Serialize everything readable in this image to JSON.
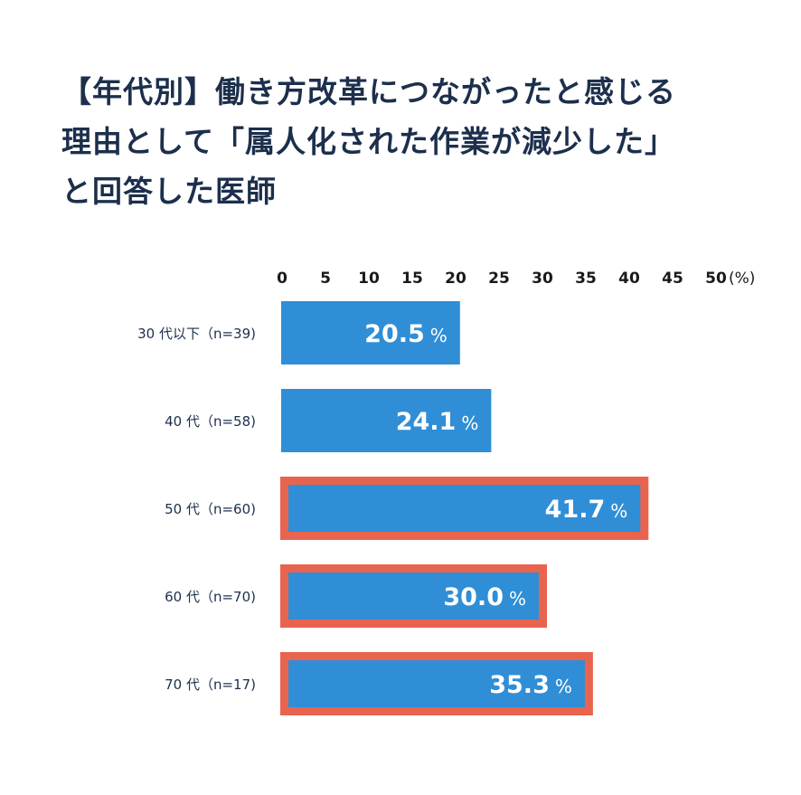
{
  "chart_data": {
    "type": "bar",
    "orientation": "horizontal",
    "title_lines": [
      "【年代別】働き方改革につながったと感じる",
      "理由として「属人化された作業が減少した」",
      "と回答した医師"
    ],
    "categories": [
      "30 代以下（n=39)",
      "40 代（n=58)",
      "50 代（n=60)",
      "60 代（n=70)",
      "70 代（n=17)"
    ],
    "values": [
      20.5,
      24.1,
      41.7,
      30.0,
      35.3
    ],
    "value_labels": [
      "20.5",
      "24.1",
      "41.7",
      "30.0",
      "35.3"
    ],
    "value_unit": "%",
    "highlighted": [
      false,
      false,
      true,
      true,
      true
    ],
    "xlim": [
      0,
      50
    ],
    "xticks": [
      "0",
      "5",
      "10",
      "15",
      "20",
      "25",
      "30",
      "35",
      "40",
      "45",
      "50"
    ],
    "xunit": "(%)",
    "grid": false,
    "colors": {
      "bar": "#2f8ed6",
      "highlight_border": "#e8644f",
      "text": "#1c2f4c"
    }
  }
}
